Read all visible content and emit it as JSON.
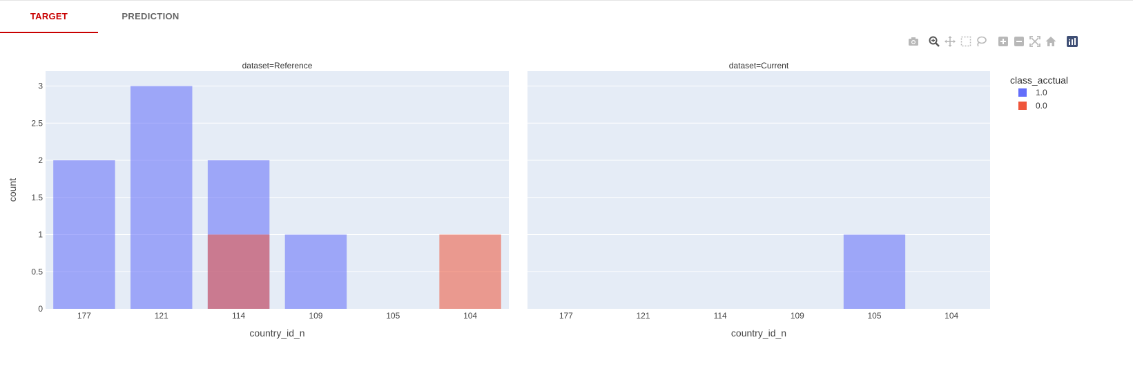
{
  "tabs": [
    {
      "label": "TARGET",
      "active": true
    },
    {
      "label": "PREDICTION",
      "active": false
    }
  ],
  "modebar": {
    "icons": [
      "camera-icon",
      "zoom-icon",
      "pan-icon",
      "box-select-icon",
      "lasso-select-icon",
      "zoom-in-icon",
      "zoom-out-icon",
      "autoscale-icon",
      "reset-axes-icon",
      "plotly-logo-icon"
    ]
  },
  "chart_data": {
    "type": "bar",
    "barmode": "overlay",
    "categories": [
      "177",
      "121",
      "114",
      "109",
      "105",
      "104"
    ],
    "xlabel": "country_id_n",
    "ylabel": "count",
    "ylim": [
      0,
      3.2
    ],
    "yticks": [
      "0",
      "0.5",
      "1",
      "1.5",
      "2",
      "2.5",
      "3"
    ],
    "ytick_values": [
      0,
      0.5,
      1,
      1.5,
      2,
      2.5,
      3
    ],
    "legend": {
      "title": "class_acctual",
      "position": "right"
    },
    "series": [
      {
        "name": "1.0",
        "color": "#636efa"
      },
      {
        "name": "0.0",
        "color": "#ef553b"
      }
    ],
    "facets": [
      {
        "title": "dataset=Reference",
        "values": {
          "1.0": [
            2,
            3,
            2,
            1,
            0,
            0
          ],
          "0.0": [
            0,
            0,
            1,
            0,
            0,
            1
          ]
        }
      },
      {
        "title": "dataset=Current",
        "values": {
          "1.0": [
            0,
            0,
            0,
            0,
            1,
            0
          ],
          "0.0": [
            0,
            0,
            0,
            0,
            0,
            0
          ]
        }
      }
    ],
    "grid": true
  }
}
